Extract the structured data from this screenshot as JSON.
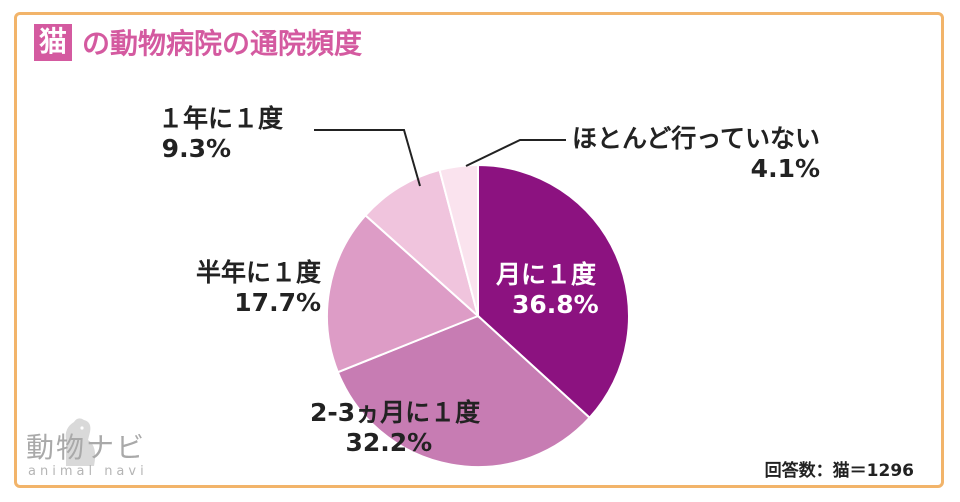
{
  "title": {
    "badge": "猫",
    "text": "の動物病院の通院頻度"
  },
  "footnote": "回答数：猫＝1296",
  "logo": {
    "main": "動物ナビ",
    "sub": "animal navi"
  },
  "chart_data": {
    "type": "pie",
    "title": "猫の動物病院の通院頻度",
    "start_angle_deg": 0,
    "direction": "clockwise",
    "slices": [
      {
        "label": "月に１度",
        "value": 36.8,
        "value_text": "36.8%",
        "color": "#8c1280"
      },
      {
        "label": "2-3ヵ月に１度",
        "value": 32.2,
        "value_text": "32.2%",
        "color": "#c77cb3"
      },
      {
        "label": "半年に１度",
        "value": 17.7,
        "value_text": "17.7%",
        "color": "#dd9cc6"
      },
      {
        "label": "１年に１度",
        "value": 9.3,
        "value_text": "9.3%",
        "color": "#f0c4dd"
      },
      {
        "label": "ほとんど行っていない",
        "value": 4.1,
        "value_text": "4.1%",
        "color": "#fae3ee"
      }
    ]
  }
}
